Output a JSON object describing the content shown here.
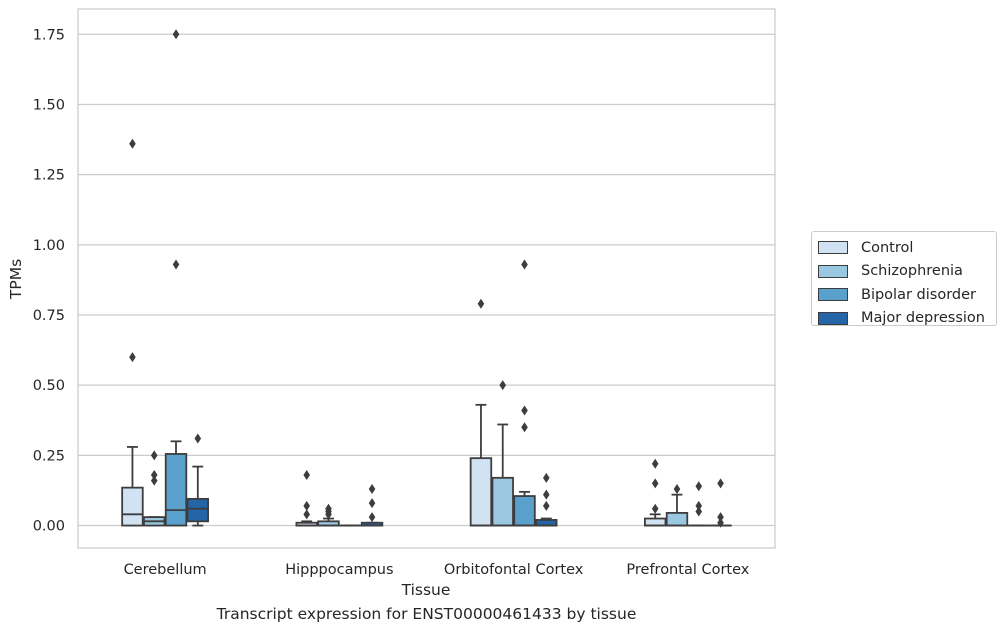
{
  "chart_data": {
    "type": "box",
    "xlabel": "Tissue",
    "ylabel": "TPMs",
    "caption": "Transcript expression for ENST00000461433 by tissue",
    "ylim": [
      -0.08,
      1.84
    ],
    "yticks": [
      "0.00",
      "0.25",
      "0.50",
      "0.75",
      "1.00",
      "1.25",
      "1.50",
      "1.75"
    ],
    "grid": "horizontal",
    "legend_position": "right",
    "categories": [
      "Cerebellum",
      "Hipppocampus",
      "Orbitofontal Cortex",
      "Prefrontal Cortex"
    ],
    "series": [
      {
        "name": "Control",
        "color": "#d1e2f2",
        "boxes": [
          {
            "whislo": 0.0,
            "q1": 0.0,
            "med": 0.04,
            "q3": 0.135,
            "whishi": 0.28,
            "fliers": [
              0.6,
              1.36
            ]
          },
          {
            "whislo": 0.0,
            "q1": 0.0,
            "med": 0.0,
            "q3": 0.01,
            "whishi": 0.015,
            "fliers": [
              0.04,
              0.07,
              0.18
            ]
          },
          {
            "whislo": 0.0,
            "q1": 0.0,
            "med": 0.0,
            "q3": 0.24,
            "whishi": 0.43,
            "fliers": [
              0.79
            ]
          },
          {
            "whislo": 0.0,
            "q1": 0.0,
            "med": 0.0,
            "q3": 0.025,
            "whishi": 0.04,
            "fliers": [
              0.06,
              0.15,
              0.22
            ]
          }
        ]
      },
      {
        "name": "Schizophrenia",
        "color": "#9ac8e0",
        "boxes": [
          {
            "whislo": 0.0,
            "q1": 0.0,
            "med": 0.015,
            "q3": 0.03,
            "whishi": 0.03,
            "fliers": [
              0.16,
              0.18,
              0.25
            ]
          },
          {
            "whislo": 0.0,
            "q1": 0.0,
            "med": 0.0,
            "q3": 0.015,
            "whishi": 0.025,
            "fliers": [
              0.04,
              0.05,
              0.06
            ]
          },
          {
            "whislo": 0.0,
            "q1": 0.0,
            "med": 0.0,
            "q3": 0.17,
            "whishi": 0.36,
            "fliers": [
              0.5
            ]
          },
          {
            "whislo": 0.0,
            "q1": 0.0,
            "med": 0.0,
            "q3": 0.045,
            "whishi": 0.11,
            "fliers": [
              0.13
            ]
          }
        ]
      },
      {
        "name": "Bipolar disorder",
        "color": "#5aa0cd",
        "boxes": [
          {
            "whislo": 0.0,
            "q1": 0.0,
            "med": 0.055,
            "q3": 0.255,
            "whishi": 0.3,
            "fliers": [
              0.93,
              1.75
            ]
          },
          {
            "whislo": 0.0,
            "q1": 0.0,
            "med": 0.0,
            "q3": 0.0,
            "whishi": 0.0,
            "fliers": []
          },
          {
            "whislo": 0.0,
            "q1": 0.0,
            "med": 0.0,
            "q3": 0.105,
            "whishi": 0.12,
            "fliers": [
              0.35,
              0.41,
              0.93
            ]
          },
          {
            "whislo": 0.0,
            "q1": 0.0,
            "med": 0.0,
            "q3": 0.0,
            "whishi": 0.0,
            "fliers": [
              0.05,
              0.07,
              0.14
            ]
          }
        ]
      },
      {
        "name": "Major depression",
        "color": "#2465a8",
        "boxes": [
          {
            "whislo": 0.0,
            "q1": 0.015,
            "med": 0.06,
            "q3": 0.095,
            "whishi": 0.21,
            "fliers": [
              0.31
            ]
          },
          {
            "whislo": 0.0,
            "q1": 0.0,
            "med": 0.0,
            "q3": 0.01,
            "whishi": 0.01,
            "fliers": [
              0.03,
              0.08,
              0.13
            ]
          },
          {
            "whislo": 0.0,
            "q1": 0.0,
            "med": 0.0,
            "q3": 0.02,
            "whishi": 0.025,
            "fliers": [
              0.07,
              0.11,
              0.17
            ]
          },
          {
            "whislo": 0.0,
            "q1": 0.0,
            "med": 0.0,
            "q3": 0.0,
            "whishi": 0.0,
            "fliers": [
              0.01,
              0.03,
              0.15
            ]
          }
        ]
      }
    ]
  }
}
